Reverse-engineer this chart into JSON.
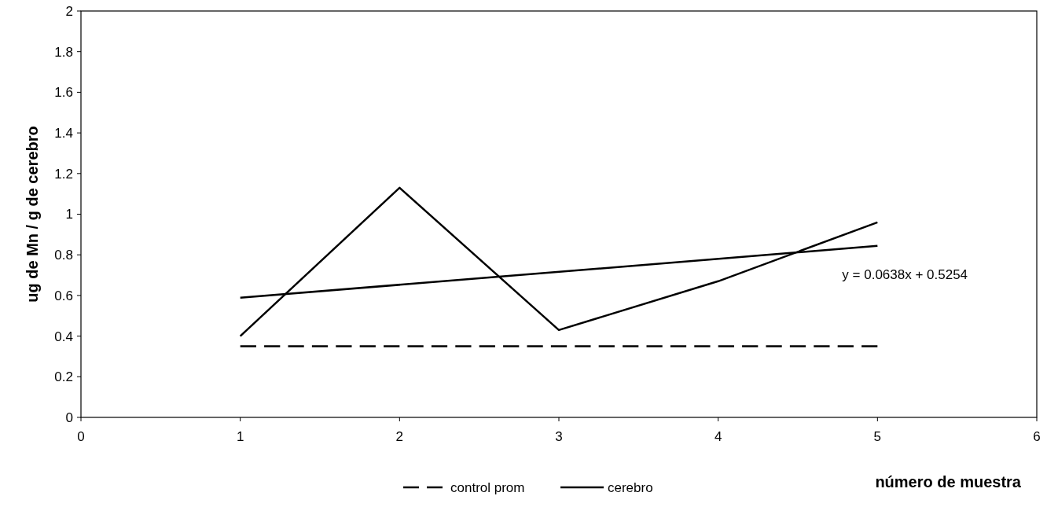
{
  "chart_data": {
    "type": "line",
    "xlabel": "número de muestra",
    "ylabel": "ug de Mn / g de cerebro",
    "x": [
      1,
      2,
      3,
      4,
      5
    ],
    "series": [
      {
        "name": "control prom",
        "color": "#000000",
        "line_style": "dashed",
        "values": [
          0.35,
          0.35,
          0.35,
          0.35,
          0.35
        ]
      },
      {
        "name": "cerebro",
        "color": "#000000",
        "line_style": "solid",
        "values": [
          0.4,
          1.13,
          0.43,
          0.67,
          0.96
        ]
      },
      {
        "color": "#000000",
        "line_style": "solid",
        "x": [
          1,
          5
        ],
        "values": [
          0.589,
          0.844
        ]
      }
    ],
    "annotations": [
      "y = 0.0638x + 0.5254"
    ],
    "xlim": [
      0,
      6
    ],
    "xticks": [
      0,
      1,
      2,
      3,
      4,
      5,
      6
    ],
    "ylim": [
      0,
      2
    ],
    "yticks": [
      0,
      0.2,
      0.4,
      0.6,
      0.8,
      1,
      1.2,
      1.4,
      1.6,
      1.8,
      2
    ],
    "grid": false,
    "legend": "bottom"
  }
}
